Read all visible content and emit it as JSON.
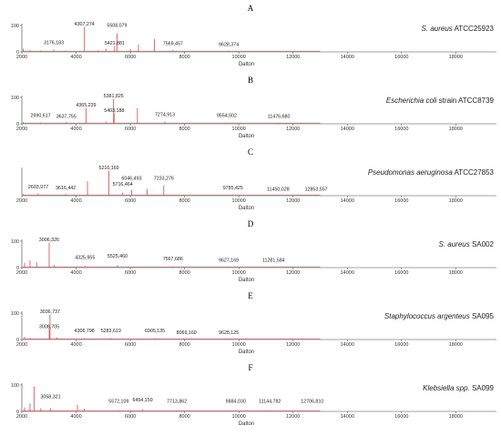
{
  "chart_data": [
    {
      "type": "line",
      "panel_letter": "A",
      "organism": {
        "italic": "S. aureus",
        "rest": " ATCC25923"
      },
      "xlabel": "Dalton",
      "xlim": [
        2000,
        19500
      ],
      "xticks": [
        2000,
        4000,
        6000,
        8000,
        10000,
        12000,
        14000,
        16000,
        18000
      ],
      "ylim": [
        0,
        100
      ],
      "yticks": [
        0,
        100
      ],
      "peaks": [
        {
          "x": 2050,
          "y": 12
        },
        {
          "x": 2300,
          "y": 6
        },
        {
          "x": 2700,
          "y": 5
        },
        {
          "x": 3176.183,
          "y": 8
        },
        {
          "x": 3600,
          "y": 4
        },
        {
          "x": 4307.274,
          "y": 95
        },
        {
          "x": 4800,
          "y": 6
        },
        {
          "x": 5100,
          "y": 12
        },
        {
          "x": 5421.881,
          "y": 22
        },
        {
          "x": 5508.079,
          "y": 70
        },
        {
          "x": 6000,
          "y": 10
        },
        {
          "x": 6300,
          "y": 28
        },
        {
          "x": 6888,
          "y": 48
        },
        {
          "x": 7569.457,
          "y": 7
        },
        {
          "x": 9628.374,
          "y": 4
        }
      ],
      "labels": [
        {
          "text": "4307,274",
          "x": 4307.274,
          "y": 95
        },
        {
          "text": "5508,079",
          "x": 5508.079,
          "y": 90
        },
        {
          "text": "3176,183",
          "x": 3176.183,
          "y": 25
        },
        {
          "text": "5421,881",
          "x": 5421.881,
          "y": 22
        },
        {
          "text": "7569,457",
          "x": 7569.457,
          "y": 20
        },
        {
          "text": "9628,374",
          "x": 9628.374,
          "y": 18
        }
      ]
    },
    {
      "type": "line",
      "panel_letter": "B",
      "organism": {
        "italic": "Escherichia coli",
        "rest": " strain ATCC8739"
      },
      "xlabel": "Dalton",
      "xlim": [
        2000,
        19500
      ],
      "xticks": [
        2000,
        4000,
        6000,
        8000,
        10000,
        12000,
        14000,
        16000,
        18000
      ],
      "ylim": [
        0,
        100
      ],
      "yticks": [
        0,
        100
      ],
      "peaks": [
        {
          "x": 2050,
          "y": 6
        },
        {
          "x": 2690.617,
          "y": 5
        },
        {
          "x": 3637.755,
          "y": 7
        },
        {
          "x": 4365.239,
          "y": 60
        },
        {
          "x": 5100,
          "y": 8
        },
        {
          "x": 5381.825,
          "y": 95
        },
        {
          "x": 5403.188,
          "y": 40
        },
        {
          "x": 6260,
          "y": 60
        },
        {
          "x": 7274.913,
          "y": 8
        },
        {
          "x": 9554.502,
          "y": 4
        },
        {
          "x": 11476.68,
          "y": 3
        }
      ],
      "labels": [
        {
          "text": "5381,825",
          "x": 5381.825,
          "y": 95
        },
        {
          "text": "4365,239",
          "x": 4365.239,
          "y": 60
        },
        {
          "text": "5403,188",
          "x": 5403.188,
          "y": 40
        },
        {
          "text": "2690,617",
          "x": 2690.617,
          "y": 20
        },
        {
          "text": "3637,755",
          "x": 3637.755,
          "y": 17
        },
        {
          "text": "7274,913",
          "x": 7274.913,
          "y": 24
        },
        {
          "text": "9554,502",
          "x": 9554.502,
          "y": 20
        },
        {
          "text": "11476,680",
          "x": 11476.68,
          "y": 17
        }
      ]
    },
    {
      "type": "line",
      "panel_letter": "C",
      "organism": {
        "italic": "Pseudomonas aeruginosa",
        "rest": " ATCC27853"
      },
      "xlabel": "Dalton",
      "xlim": [
        2000,
        19500
      ],
      "xticks": [
        2000,
        4000,
        6000,
        8000,
        10000,
        12000,
        14000,
        16000,
        18000
      ],
      "ylim": [
        0,
        100
      ],
      "yticks": [],
      "peaks": [
        {
          "x": 2050,
          "y": 6
        },
        {
          "x": 2603.977,
          "y": 8
        },
        {
          "x": 3616.442,
          "y": 6
        },
        {
          "x": 4420,
          "y": 55
        },
        {
          "x": 5210.169,
          "y": 95
        },
        {
          "x": 5716.464,
          "y": 12
        },
        {
          "x": 6046.493,
          "y": 22
        },
        {
          "x": 6620,
          "y": 26
        },
        {
          "x": 7233.276,
          "y": 40
        },
        {
          "x": 9785.425,
          "y": 4
        },
        {
          "x": 11450.028,
          "y": 3
        },
        {
          "x": 12853.557,
          "y": 3
        }
      ],
      "labels": [
        {
          "text": "5210,169",
          "x": 5210.169,
          "y": 95
        },
        {
          "text": "6046,493",
          "x": 6046.493,
          "y": 55
        },
        {
          "text": "7233,276",
          "x": 7233.276,
          "y": 55
        },
        {
          "text": "5716,464",
          "x": 5716.464,
          "y": 33
        },
        {
          "text": "2603,977",
          "x": 2603.977,
          "y": 23
        },
        {
          "text": "3616,442",
          "x": 3616.442,
          "y": 19
        },
        {
          "text": "9785,425",
          "x": 9785.425,
          "y": 19
        },
        {
          "text": "11450,028",
          "x": 11450.028,
          "y": 14
        },
        {
          "text": "12853,557",
          "x": 12853.557,
          "y": 14
        }
      ]
    },
    {
      "type": "line",
      "panel_letter": "D",
      "organism": {
        "italic": "S. aureus",
        "rest": " SA002"
      },
      "xlabel": "Dalton",
      "xlim": [
        2000,
        19500
      ],
      "xticks": [
        2000,
        4000,
        6000,
        8000,
        10000,
        12000,
        14000,
        16000,
        18000
      ],
      "ylim": [
        0,
        100
      ],
      "yticks": [
        0,
        100
      ],
      "peaks": [
        {
          "x": 2100,
          "y": 18
        },
        {
          "x": 2300,
          "y": 28
        },
        {
          "x": 2550,
          "y": 20
        },
        {
          "x": 3006.326,
          "y": 95
        },
        {
          "x": 3200,
          "y": 10
        },
        {
          "x": 4325.955,
          "y": 6
        },
        {
          "x": 5525.46,
          "y": 9
        },
        {
          "x": 7567.686,
          "y": 5
        },
        {
          "x": 9627.169,
          "y": 3
        },
        {
          "x": 11281.584,
          "y": 3
        }
      ],
      "labels": [
        {
          "text": "3006,326",
          "x": 3006.326,
          "y": 95
        },
        {
          "text": "5525,460",
          "x": 5525.46,
          "y": 32
        },
        {
          "text": "4325,955",
          "x": 4325.955,
          "y": 27
        },
        {
          "text": "7567,686",
          "x": 7567.686,
          "y": 22
        },
        {
          "text": "9627,169",
          "x": 9627.169,
          "y": 17
        },
        {
          "text": "11281,584",
          "x": 11281.584,
          "y": 17
        }
      ]
    },
    {
      "type": "line",
      "panel_letter": "E",
      "organism": {
        "italic": "Staphylococcus argenteus",
        "rest": " SA095"
      },
      "xlabel": "Dalton",
      "xlim": [
        2000,
        19500
      ],
      "xticks": [
        2000,
        4000,
        6000,
        8000,
        10000,
        12000,
        14000,
        16000,
        18000
      ],
      "ylim": [
        0,
        100
      ],
      "yticks": [
        0,
        100
      ],
      "peaks": [
        {
          "x": 2100,
          "y": 10
        },
        {
          "x": 2300,
          "y": 6
        },
        {
          "x": 3036.737,
          "y": 95
        },
        {
          "x": 3008.705,
          "y": 40
        },
        {
          "x": 3300,
          "y": 8
        },
        {
          "x": 4306.798,
          "y": 5
        },
        {
          "x": 5283.619,
          "y": 6
        },
        {
          "x": 6905.135,
          "y": 5
        },
        {
          "x": 8069.16,
          "y": 3
        },
        {
          "x": 9628.125,
          "y": 3
        }
      ],
      "labels": [
        {
          "text": "3036,737",
          "x": 3036.737,
          "y": 95
        },
        {
          "text": "3008,705",
          "x": 3008.705,
          "y": 38
        },
        {
          "text": "4306,798",
          "x": 4306.798,
          "y": 22
        },
        {
          "text": "5283,619",
          "x": 5283.619,
          "y": 22
        },
        {
          "text": "6905,135",
          "x": 6905.135,
          "y": 22
        },
        {
          "text": "8069,160",
          "x": 8069.16,
          "y": 15
        },
        {
          "text": "9628,125",
          "x": 9628.125,
          "y": 15
        }
      ]
    },
    {
      "type": "line",
      "panel_letter": "F",
      "organism": {
        "italic": "Klebsiella spp.",
        "rest": " SA099"
      },
      "xlabel": "Dalton",
      "xlim": [
        2000,
        19500
      ],
      "xticks": [
        2000,
        4000,
        6000,
        8000,
        10000,
        12000,
        14000,
        16000,
        18000
      ],
      "ylim": [
        0,
        100
      ],
      "yticks": [
        0,
        100
      ],
      "peaks": [
        {
          "x": 2100,
          "y": 15
        },
        {
          "x": 2300,
          "y": 30
        },
        {
          "x": 2450,
          "y": 95
        },
        {
          "x": 2700,
          "y": 12
        },
        {
          "x": 3058.321,
          "y": 12
        },
        {
          "x": 4050,
          "y": 25
        },
        {
          "x": 4300,
          "y": 10
        },
        {
          "x": 5572.109,
          "y": 5
        },
        {
          "x": 6454.159,
          "y": 7
        },
        {
          "x": 7713.862,
          "y": 3
        },
        {
          "x": 9884.03,
          "y": 3
        },
        {
          "x": 11144.782,
          "y": 3
        },
        {
          "x": 12706.81,
          "y": 3
        }
      ],
      "labels": [
        {
          "text": "3058,321",
          "x": 3058.321,
          "y": 45
        },
        {
          "text": "5572,109",
          "x": 5572.109,
          "y": 28
        },
        {
          "text": "6454,159",
          "x": 6454.159,
          "y": 32
        },
        {
          "text": "7713,862",
          "x": 7713.862,
          "y": 28
        },
        {
          "text": "9884,030",
          "x": 9884.03,
          "y": 28
        },
        {
          "text": "11144,782",
          "x": 11144.782,
          "y": 28
        },
        {
          "text": "12706,810",
          "x": 12706.81,
          "y": 28
        }
      ]
    }
  ]
}
